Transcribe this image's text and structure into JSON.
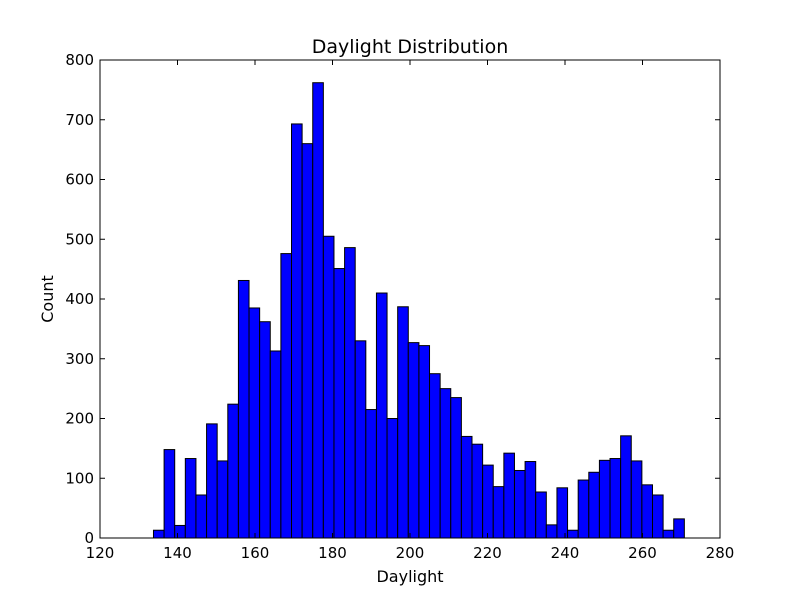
{
  "chart_data": {
    "type": "bar",
    "title": "Daylight Distribution",
    "xlabel": "Daylight",
    "ylabel": "Count",
    "xlim": [
      120,
      280
    ],
    "ylim": [
      0,
      800
    ],
    "xticks": [
      120,
      140,
      160,
      180,
      200,
      220,
      240,
      260,
      280
    ],
    "yticks": [
      0,
      100,
      200,
      300,
      400,
      500,
      600,
      700,
      800
    ],
    "grid": false,
    "bar_color": "#0000ff",
    "edge_color": "#000000",
    "bin_start": 133.8,
    "bin_width": 2.74,
    "values": [
      13,
      148,
      21,
      133,
      72,
      191,
      129,
      224,
      431,
      385,
      362,
      313,
      476,
      693,
      660,
      762,
      505,
      451,
      486,
      330,
      215,
      410,
      200,
      387,
      327,
      322,
      275,
      250,
      235,
      170,
      157,
      122,
      86,
      142,
      113,
      128,
      77,
      22,
      84,
      13,
      97,
      110,
      130,
      133,
      171,
      129,
      89,
      72,
      13,
      32
    ]
  }
}
